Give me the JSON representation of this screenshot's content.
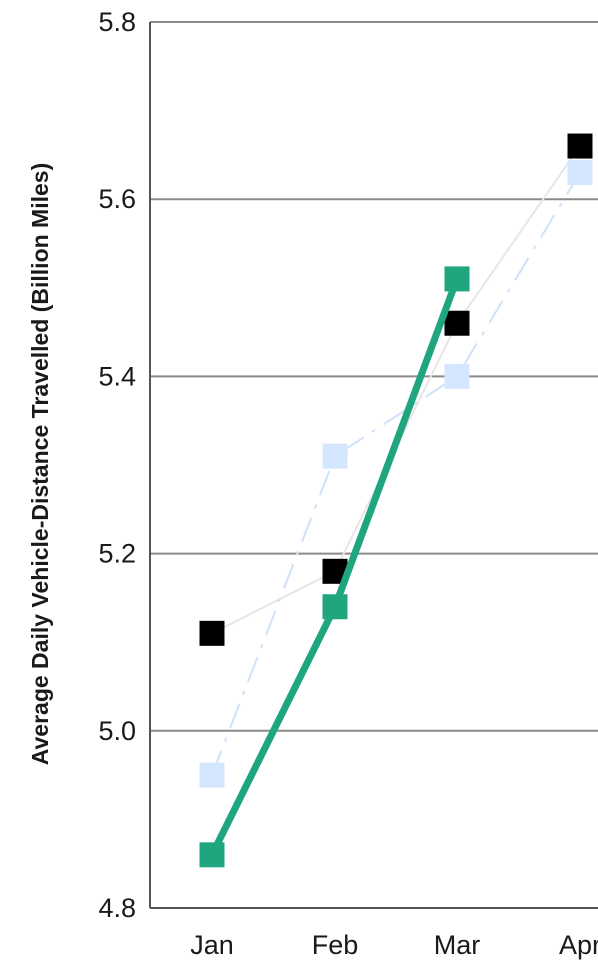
{
  "chart_data": {
    "type": "line",
    "title": "",
    "xlabel": "",
    "ylabel": "Average Daily Vehicle-Distance Travelled (Billion Miles)",
    "categories": [
      "Jan",
      "Feb",
      "Mar",
      "Apr"
    ],
    "ylim": [
      4.8,
      5.8
    ],
    "yticks": [
      "4.8",
      "5.0",
      "5.2",
      "5.4",
      "5.6",
      "5.8"
    ],
    "grid": true,
    "series": [
      {
        "values": [
          5.11,
          5.18,
          5.46,
          5.66
        ],
        "color": "#000000",
        "line_color": "#e6e6e6",
        "line_style": "solid",
        "marker": "square"
      },
      {
        "values": [
          4.95,
          5.31,
          5.4,
          5.63
        ],
        "color": "#d5e6ff",
        "line_color": "#cfe1fb",
        "line_style": "dashdot",
        "marker": "square"
      },
      {
        "values": [
          4.86,
          5.14,
          5.51,
          null
        ],
        "color": "#1fa67f",
        "line_color": "#1fa67f",
        "line_style": "solid",
        "marker": "square"
      }
    ]
  }
}
